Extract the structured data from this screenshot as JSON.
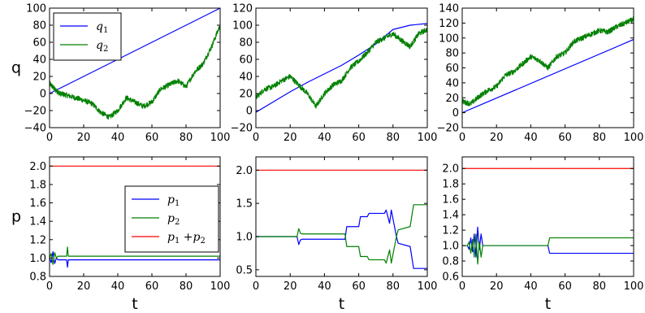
{
  "colors": {
    "blue": "#0000ff",
    "green": "#008000",
    "red": "#ff0000"
  },
  "chart_data": [
    {
      "type": "line",
      "row": 0,
      "col": 0,
      "ylabel": "q",
      "xlabel": "",
      "xlim": [
        0,
        100
      ],
      "ylim": [
        -40,
        100
      ],
      "xticks": [
        "0",
        "20",
        "40",
        "60",
        "80",
        "100"
      ],
      "yticks": [
        "−40",
        "−20",
        "0",
        "20",
        "40",
        "60",
        "80",
        "100"
      ],
      "legend": {
        "position": "upper-left",
        "entries": [
          {
            "base": "q",
            "sub": "1",
            "color": "blue"
          },
          {
            "base": "q",
            "sub": "2",
            "color": "green"
          }
        ]
      },
      "series": [
        {
          "name": "q1",
          "color": "blue",
          "x": [
            0,
            100
          ],
          "y": [
            0,
            100
          ]
        },
        {
          "name": "q2",
          "color": "green",
          "noisy": true,
          "x": [
            0,
            3,
            6,
            10,
            15,
            20,
            25,
            30,
            35,
            40,
            45,
            50,
            55,
            60,
            65,
            70,
            75,
            80,
            85,
            90,
            95,
            100
          ],
          "y": [
            12,
            5,
            0,
            -2,
            -5,
            -8,
            -12,
            -22,
            -28,
            -20,
            -5,
            -10,
            -15,
            -10,
            5,
            10,
            15,
            8,
            25,
            35,
            55,
            80
          ]
        }
      ]
    },
    {
      "type": "line",
      "row": 0,
      "col": 1,
      "ylabel": "",
      "xlabel": "",
      "xlim": [
        0,
        100
      ],
      "ylim": [
        -20,
        120
      ],
      "xticks": [
        "0",
        "20",
        "40",
        "60",
        "80",
        "100"
      ],
      "yticks": [
        "−20",
        "0",
        "20",
        "40",
        "60",
        "80",
        "100",
        "120"
      ],
      "series": [
        {
          "name": "q1",
          "color": "blue",
          "x": [
            0,
            10,
            20,
            30,
            40,
            50,
            60,
            70,
            80,
            90,
            100
          ],
          "y": [
            -2,
            10,
            22,
            33,
            43,
            53,
            65,
            78,
            95,
            100,
            102
          ]
        },
        {
          "name": "q2",
          "color": "green",
          "noisy": true,
          "x": [
            0,
            5,
            10,
            15,
            20,
            25,
            30,
            35,
            40,
            45,
            50,
            55,
            60,
            65,
            70,
            75,
            80,
            85,
            90,
            95,
            100
          ],
          "y": [
            15,
            25,
            28,
            35,
            40,
            30,
            20,
            5,
            20,
            30,
            35,
            50,
            58,
            68,
            80,
            85,
            90,
            82,
            75,
            90,
            95
          ]
        }
      ]
    },
    {
      "type": "line",
      "row": 0,
      "col": 2,
      "ylabel": "",
      "xlabel": "",
      "xlim": [
        0,
        100
      ],
      "ylim": [
        -20,
        140
      ],
      "xticks": [
        "0",
        "20",
        "40",
        "60",
        "80",
        "100"
      ],
      "yticks": [
        "−20",
        "0",
        "20",
        "40",
        "60",
        "80",
        "100",
        "120",
        "140"
      ],
      "series": [
        {
          "name": "q1",
          "color": "blue",
          "x": [
            0,
            100
          ],
          "y": [
            0,
            98
          ]
        },
        {
          "name": "q2",
          "color": "green",
          "noisy": true,
          "x": [
            0,
            5,
            10,
            15,
            20,
            25,
            30,
            35,
            40,
            45,
            50,
            55,
            60,
            65,
            70,
            75,
            80,
            85,
            90,
            95,
            100
          ],
          "y": [
            15,
            12,
            22,
            30,
            35,
            50,
            55,
            65,
            75,
            70,
            60,
            75,
            80,
            95,
            100,
            105,
            110,
            108,
            115,
            120,
            125
          ]
        }
      ]
    },
    {
      "type": "line",
      "row": 1,
      "col": 0,
      "ylabel": "p",
      "xlabel": "t",
      "xlim": [
        0,
        100
      ],
      "ylim": [
        0.8,
        2.1
      ],
      "xticks": [
        "0",
        "20",
        "40",
        "60",
        "80",
        "100"
      ],
      "yticks": [
        "0.8",
        "1.0",
        "1.2",
        "1.4",
        "1.6",
        "1.8",
        "2.0"
      ],
      "legend": {
        "position": "center-right",
        "entries": [
          {
            "base": "p",
            "sub": "1",
            "color": "blue"
          },
          {
            "base": "p",
            "sub": "2",
            "color": "green"
          },
          {
            "base": "p",
            "sub": "1",
            "extra": " +p",
            "sub2": "2",
            "color": "red"
          }
        ]
      },
      "series": [
        {
          "name": "p1",
          "color": "blue",
          "x": [
            0,
            1,
            2,
            3,
            4,
            5,
            10,
            10.5,
            11,
            100
          ],
          "y": [
            1.0,
            0.95,
            1.07,
            0.94,
            1.0,
            0.98,
            0.98,
            0.9,
            0.98,
            0.98
          ]
        },
        {
          "name": "p2",
          "color": "green",
          "x": [
            0,
            1,
            2,
            3,
            4,
            5,
            10,
            10.5,
            11,
            100
          ],
          "y": [
            1.0,
            1.05,
            0.93,
            1.06,
            1.0,
            1.02,
            1.02,
            1.12,
            1.02,
            1.02
          ]
        },
        {
          "name": "p1+p2",
          "color": "red",
          "x": [
            0,
            100
          ],
          "y": [
            2.0,
            2.0
          ]
        }
      ]
    },
    {
      "type": "line",
      "row": 1,
      "col": 1,
      "ylabel": "",
      "xlabel": "t",
      "xlim": [
        0,
        100
      ],
      "ylim": [
        0.4,
        2.2
      ],
      "xticks": [
        "0",
        "20",
        "40",
        "60",
        "80",
        "100"
      ],
      "yticks": [
        "0.5",
        "1.0",
        "1.5",
        "2.0"
      ],
      "series": [
        {
          "name": "p1",
          "color": "blue",
          "x": [
            0,
            24,
            25,
            26,
            27,
            52,
            53,
            60,
            61,
            65,
            66,
            75,
            76,
            78,
            79,
            82,
            83,
            90,
            92,
            100
          ],
          "y": [
            1.0,
            1.0,
            0.88,
            0.95,
            0.96,
            0.96,
            1.15,
            1.15,
            1.3,
            1.3,
            1.35,
            1.35,
            1.4,
            1.2,
            1.4,
            1.0,
            0.9,
            0.85,
            0.52,
            0.52
          ]
        },
        {
          "name": "p2",
          "color": "green",
          "x": [
            0,
            24,
            25,
            26,
            27,
            52,
            53,
            60,
            61,
            65,
            66,
            75,
            76,
            78,
            79,
            82,
            83,
            90,
            92,
            100
          ],
          "y": [
            1.0,
            1.0,
            1.12,
            1.05,
            1.04,
            1.04,
            0.85,
            0.85,
            0.7,
            0.7,
            0.65,
            0.65,
            0.6,
            0.8,
            0.6,
            1.0,
            1.1,
            1.15,
            1.48,
            1.48
          ]
        },
        {
          "name": "p1+p2",
          "color": "red",
          "x": [
            0,
            100
          ],
          "y": [
            2.0,
            2.0
          ]
        }
      ]
    },
    {
      "type": "line",
      "row": 1,
      "col": 2,
      "ylabel": "",
      "xlabel": "t",
      "xlim": [
        0,
        100
      ],
      "ylim": [
        0.6,
        2.15
      ],
      "xticks": [
        "0",
        "20",
        "40",
        "60",
        "80",
        "100"
      ],
      "yticks": [
        "0.6",
        "0.8",
        "1.0",
        "1.2",
        "1.4",
        "1.6",
        "1.8",
        "2.0"
      ],
      "series": [
        {
          "name": "p1",
          "color": "blue",
          "x": [
            0,
            3,
            4,
            5,
            6,
            7,
            8,
            9,
            10,
            11,
            12,
            14,
            50,
            51,
            100
          ],
          "y": [
            1.0,
            1.0,
            0.95,
            1.1,
            0.92,
            1.15,
            0.85,
            1.24,
            0.95,
            1.15,
            1.0,
            1.0,
            1.0,
            0.9,
            0.9
          ]
        },
        {
          "name": "p2",
          "color": "green",
          "x": [
            0,
            3,
            4,
            5,
            6,
            7,
            8,
            9,
            10,
            11,
            12,
            14,
            50,
            51,
            100
          ],
          "y": [
            1.0,
            1.0,
            1.05,
            0.9,
            1.08,
            0.85,
            1.15,
            0.76,
            1.05,
            0.85,
            1.0,
            1.0,
            1.0,
            1.1,
            1.1
          ]
        },
        {
          "name": "p1+p2",
          "color": "red",
          "x": [
            0,
            100
          ],
          "y": [
            2.0,
            2.0
          ]
        }
      ]
    }
  ]
}
